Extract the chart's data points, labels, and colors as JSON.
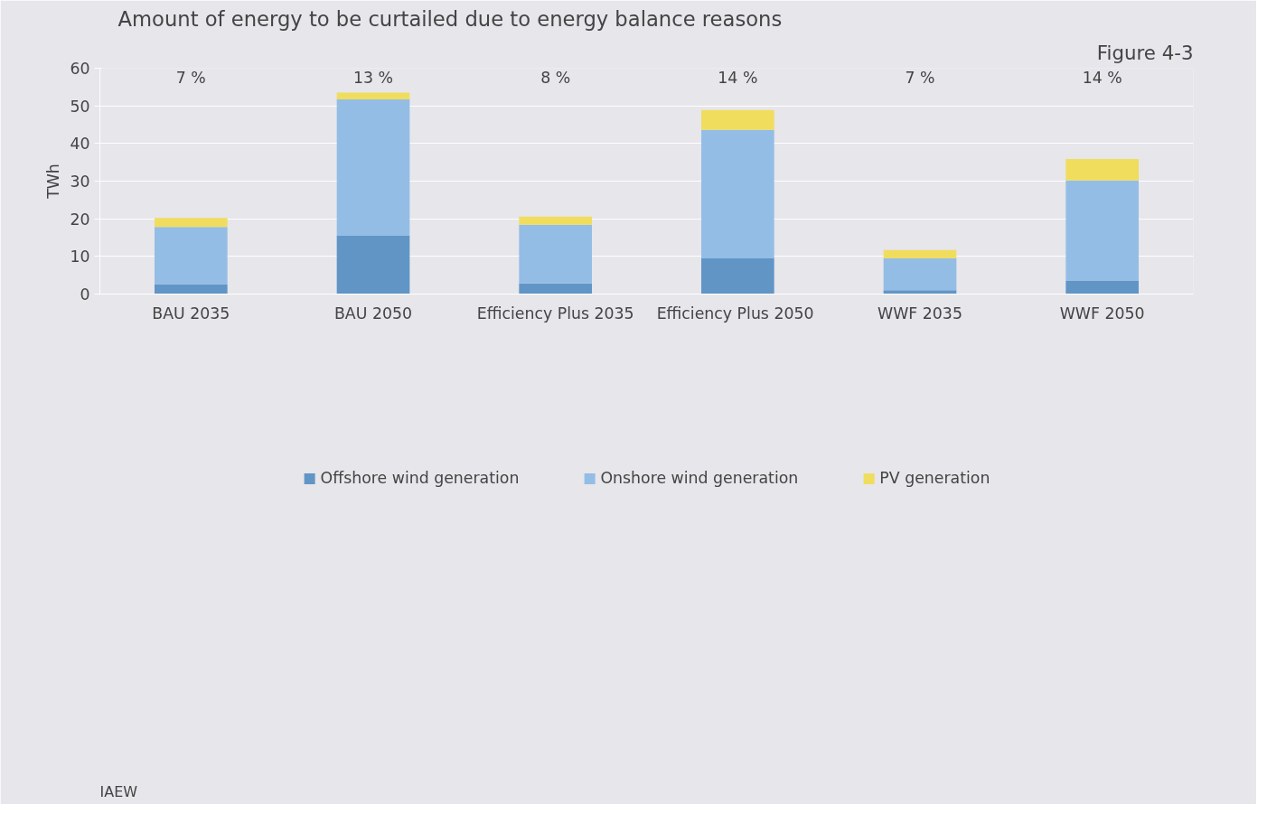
{
  "chart_data": {
    "type": "bar",
    "title": "Amount of energy to be curtailed due to energy balance reasons",
    "ylabel": "TWh",
    "categories": [
      "BAU 2035",
      "BAU 2050",
      "Efficiency Plus 2035",
      "Efficiency Plus  2050",
      "WWF 2035",
      "WWF 2050"
    ],
    "stacked": true,
    "series": [
      {
        "name": "Offshore wind generation",
        "color": "#6195c6",
        "values": [
          2.5,
          15.5,
          2.8,
          9.5,
          1.0,
          3.5
        ]
      },
      {
        "name": "Onshore wind generation",
        "color": "#94bde6",
        "values": [
          15.3,
          36.2,
          15.6,
          34.1,
          8.5,
          26.7
        ]
      },
      {
        "name": "PV generation",
        "color": "#f0dd5e",
        "values": [
          2.4,
          1.8,
          2.2,
          5.3,
          2.2,
          5.7
        ]
      }
    ],
    "ylim": [
      0,
      60
    ],
    "yticks": [
      0,
      10,
      20,
      30,
      40,
      50,
      60
    ],
    "grid": "y",
    "legend": "bottom",
    "annotations": [
      "Figure 4-3",
      "IAEW",
      "7 %",
      "13 %",
      "8 %",
      "14 %",
      "7 %",
      "14 %"
    ]
  }
}
